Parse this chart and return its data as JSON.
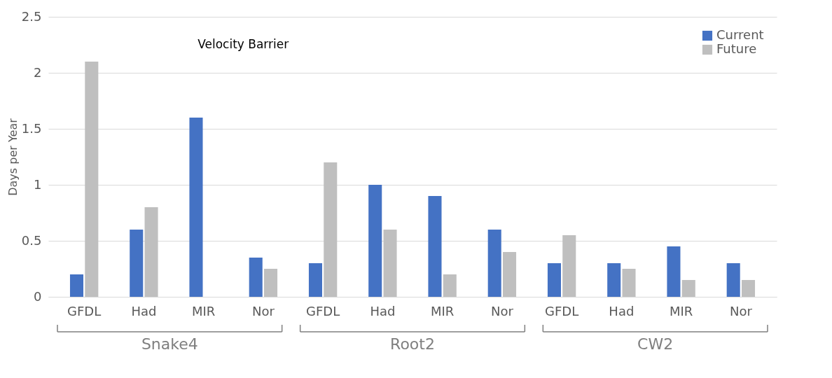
{
  "chart_data": {
    "type": "bar",
    "title": "Velocity Barrier",
    "ylabel": "Days per Year",
    "categories": [
      "GFDL",
      "Had",
      "MIR",
      "Nor",
      "GFDL",
      "Had",
      "MIR",
      "Nor",
      "GFDL",
      "Had",
      "MIR",
      "Nor"
    ],
    "series": [
      {
        "name": "Current",
        "color": "#4472c4",
        "values": [
          0.2,
          0.6,
          1.6,
          0.35,
          0.3,
          1.0,
          0.9,
          0.6,
          0.3,
          0.3,
          0.45,
          0.3
        ]
      },
      {
        "name": "Future",
        "color": "#bfbfbf",
        "values": [
          2.1,
          0.8,
          0,
          0.25,
          1.2,
          0.6,
          0.2,
          0.4,
          0.55,
          0.25,
          0.15,
          0.15
        ]
      }
    ],
    "annotations": [
      "Snake4",
      "Root2",
      "CW2"
    ],
    "ylim": [
      0,
      2.5
    ],
    "yticks": [
      0,
      0.5,
      1,
      1.5,
      2,
      2.5
    ],
    "grid": "y",
    "legend": "top right"
  }
}
